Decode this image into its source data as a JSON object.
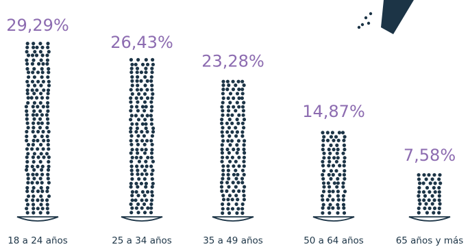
{
  "chart_data": {
    "type": "bar",
    "categories": [
      "18 a 24 años",
      "25 a 34 años",
      "35 a 49 años",
      "50 a 64 años",
      "65 años y más"
    ],
    "values": [
      29.29,
      26.43,
      23.28,
      14.87,
      7.58
    ],
    "value_labels": [
      "29,29%",
      "26,43%",
      "23,28%",
      "14,87%",
      "7,58%"
    ],
    "title": "",
    "xlabel": "",
    "ylabel": "",
    "ylim": [
      0,
      30
    ]
  },
  "colors": {
    "dots": "#1c3446",
    "value_labels": "#8c6bb0",
    "category_labels": "#1c3446",
    "plate": "#1c3446"
  },
  "icons": {
    "shaker": "salt-shaker-icon"
  }
}
